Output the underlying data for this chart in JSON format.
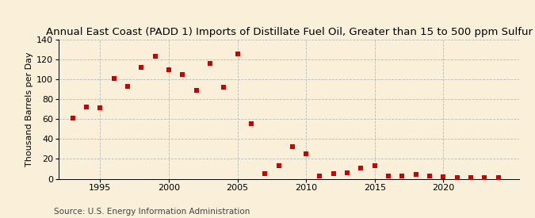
{
  "title": "Annual East Coast (PADD 1) Imports of Distillate Fuel Oil, Greater than 15 to 500 ppm Sulfur",
  "ylabel": "Thousand Barrels per Day",
  "source": "Source: U.S. Energy Information Administration",
  "background_color": "#faefd8",
  "plot_bg_color": "#faefd8",
  "marker_color": "#cc0000",
  "years": [
    1993,
    1994,
    1995,
    1996,
    1997,
    1998,
    1999,
    2000,
    2001,
    2002,
    2003,
    2004,
    2005,
    2006,
    2007,
    2008,
    2009,
    2010,
    2011,
    2012,
    2013,
    2014,
    2015,
    2016,
    2017,
    2018,
    2019,
    2020,
    2021,
    2022,
    2023,
    2024
  ],
  "values": [
    61,
    72,
    71,
    101,
    93,
    112,
    123,
    109,
    105,
    89,
    116,
    92,
    125,
    55,
    5,
    13,
    32,
    25,
    3,
    5,
    6,
    11,
    13,
    3,
    3,
    4,
    3,
    2,
    1,
    1,
    1,
    1
  ],
  "ylim": [
    0,
    140
  ],
  "yticks": [
    0,
    20,
    40,
    60,
    80,
    100,
    120,
    140
  ],
  "xticks": [
    1995,
    2000,
    2005,
    2010,
    2015,
    2020
  ],
  "xlim": [
    1992.0,
    2025.5
  ],
  "title_fontsize": 9.5,
  "label_fontsize": 8,
  "tick_fontsize": 8,
  "source_fontsize": 7.5,
  "grid_color": "#bbbbbb",
  "marker_size": 14
}
